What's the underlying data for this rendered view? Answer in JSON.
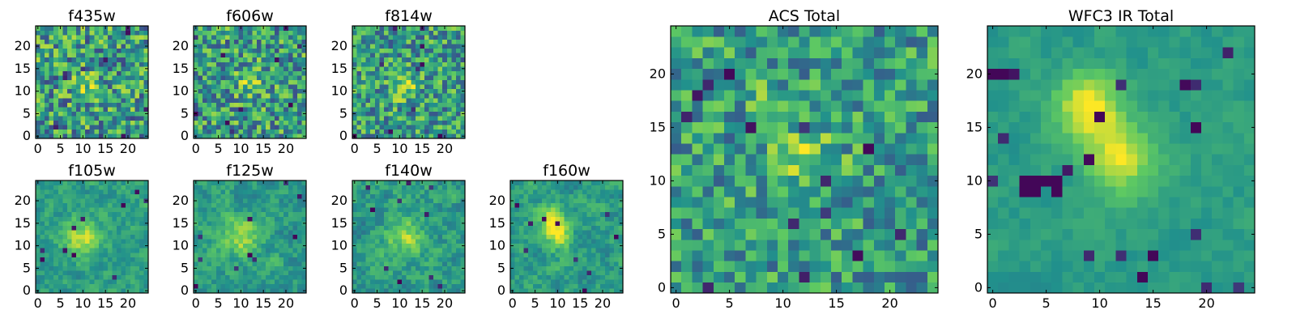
{
  "colormap": [
    "#440154",
    "#3b528b",
    "#21918c",
    "#5ec962",
    "#fde725"
  ],
  "chart_data": [
    {
      "type": "heatmap",
      "title": "f435w",
      "xticks": [
        0,
        5,
        10,
        15,
        20
      ],
      "yticks": [
        0,
        5,
        10,
        15,
        20
      ],
      "xlim": [
        -0.5,
        24.5
      ],
      "ylim": [
        -0.5,
        24.5
      ]
    },
    {
      "type": "heatmap",
      "title": "f606w",
      "xticks": [
        0,
        5,
        10,
        15,
        20
      ],
      "yticks": [
        0,
        5,
        10,
        15,
        20
      ],
      "xlim": [
        -0.5,
        24.5
      ],
      "ylim": [
        -0.5,
        24.5
      ]
    },
    {
      "type": "heatmap",
      "title": "f814w",
      "xticks": [
        0,
        5,
        10,
        15,
        20
      ],
      "yticks": [
        0,
        5,
        10,
        15,
        20
      ],
      "xlim": [
        -0.5,
        24.5
      ],
      "ylim": [
        -0.5,
        24.5
      ]
    },
    {
      "type": "heatmap",
      "title": "f105w",
      "xticks": [
        0,
        5,
        10,
        15,
        20
      ],
      "yticks": [
        0,
        5,
        10,
        15,
        20
      ],
      "xlim": [
        -0.5,
        24.5
      ],
      "ylim": [
        -0.5,
        24.5
      ]
    },
    {
      "type": "heatmap",
      "title": "f125w",
      "xticks": [
        0,
        5,
        10,
        15,
        20
      ],
      "yticks": [
        0,
        5,
        10,
        15,
        20
      ],
      "xlim": [
        -0.5,
        24.5
      ],
      "ylim": [
        -0.5,
        24.5
      ]
    },
    {
      "type": "heatmap",
      "title": "f140w",
      "xticks": [
        0,
        5,
        10,
        15,
        20
      ],
      "yticks": [
        0,
        5,
        10,
        15,
        20
      ],
      "xlim": [
        -0.5,
        24.5
      ],
      "ylim": [
        -0.5,
        24.5
      ]
    },
    {
      "type": "heatmap",
      "title": "f160w",
      "xticks": [
        0,
        5,
        10,
        15,
        20
      ],
      "yticks": [
        0,
        5,
        10,
        15,
        20
      ],
      "xlim": [
        -0.5,
        24.5
      ],
      "ylim": [
        -0.5,
        24.5
      ]
    },
    {
      "type": "heatmap",
      "title": "ACS Total",
      "xticks": [
        0,
        5,
        10,
        15,
        20
      ],
      "yticks": [
        0,
        5,
        10,
        15,
        20
      ],
      "xlim": [
        -0.5,
        24.5
      ],
      "ylim": [
        -0.5,
        24.5
      ]
    },
    {
      "type": "heatmap",
      "title": "WFC3 IR Total",
      "xticks": [
        0,
        5,
        10,
        15,
        20
      ],
      "yticks": [
        0,
        5,
        10,
        15,
        20
      ],
      "xlim": [
        -0.5,
        24.5
      ],
      "ylim": [
        -0.5,
        24.5
      ]
    }
  ]
}
